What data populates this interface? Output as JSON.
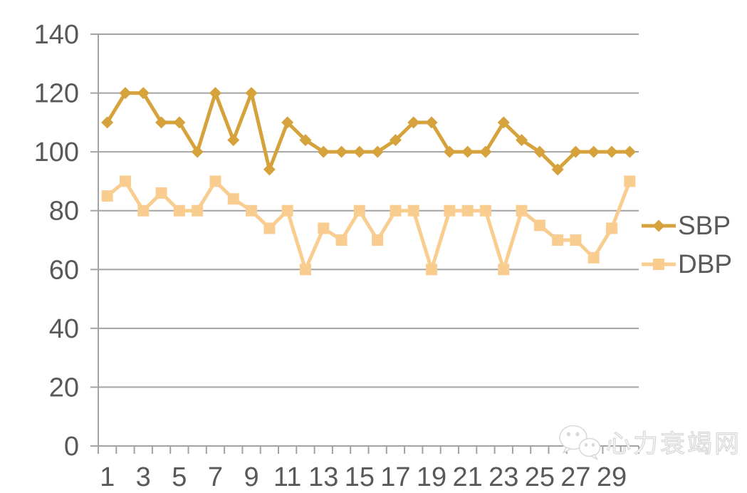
{
  "chart_data": {
    "type": "line",
    "title": "",
    "n_points": 30,
    "x_labels": [
      "1",
      "3",
      "5",
      "7",
      "9",
      "11",
      "13",
      "15",
      "17",
      "19",
      "21",
      "23",
      "25",
      "27",
      "29"
    ],
    "x_label_step": 2,
    "series": [
      {
        "name": "SBP",
        "marker": "diamond",
        "color": "#D5A23C",
        "values": [
          110,
          120,
          120,
          110,
          110,
          100,
          120,
          104,
          120,
          94,
          110,
          104,
          100,
          100,
          100,
          100,
          104,
          110,
          110,
          100,
          100,
          100,
          110,
          104,
          100,
          94,
          100,
          100,
          100,
          100
        ]
      },
      {
        "name": "DBP",
        "marker": "square",
        "color": "#F9CD90",
        "values": [
          85,
          90,
          80,
          86,
          80,
          80,
          90,
          84,
          80,
          74,
          80,
          60,
          74,
          70,
          80,
          70,
          80,
          80,
          60,
          80,
          80,
          80,
          60,
          80,
          75,
          70,
          70,
          64,
          74,
          90
        ]
      }
    ],
    "ylim": [
      0,
      140
    ],
    "yticks": [
      0,
      20,
      40,
      60,
      80,
      100,
      120,
      140
    ],
    "grid": "horizontal",
    "legend_position": "right",
    "axis_color": "#A3A3A3",
    "label_color": "#595959"
  },
  "legend": {
    "items": [
      {
        "label": "SBP"
      },
      {
        "label": "DBP"
      }
    ]
  },
  "watermark": {
    "text": "心力衰竭网"
  }
}
